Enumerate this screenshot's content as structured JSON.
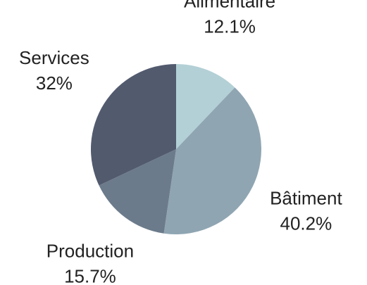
{
  "chart_data": {
    "type": "pie",
    "categories": [
      "Alimentaire",
      "Bâtiment",
      "Production",
      "Services"
    ],
    "values": [
      12.1,
      40.2,
      15.7,
      32
    ],
    "value_labels": [
      "12.1%",
      "40.2%",
      "15.7%",
      "32%"
    ],
    "colors": [
      "#b3d0d6",
      "#8fa5b2",
      "#6c7b8b",
      "#525a6e"
    ]
  }
}
